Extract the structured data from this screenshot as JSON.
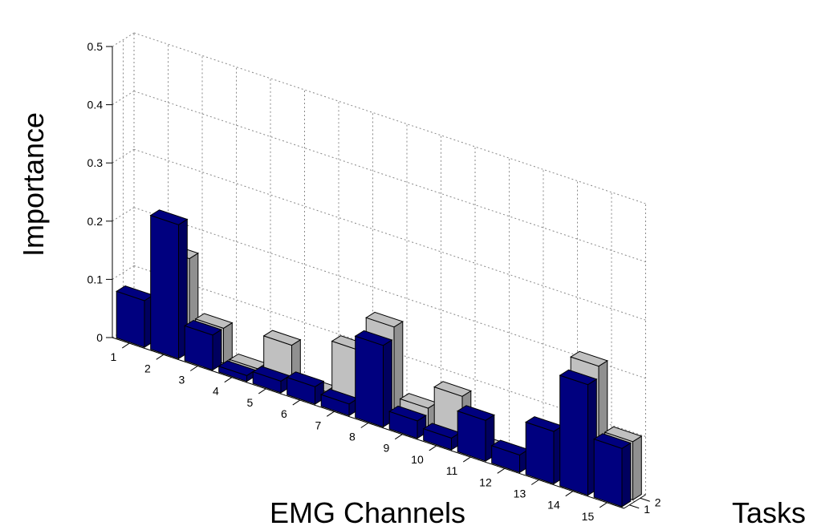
{
  "chart_data": {
    "type": "bar3d",
    "xlabel": "EMG Channels",
    "ylabel": "Importance",
    "zlabel": "Tasks",
    "categories": [
      "1",
      "2",
      "3",
      "4",
      "5",
      "6",
      "7",
      "8",
      "9",
      "10",
      "11",
      "12",
      "13",
      "14",
      "15"
    ],
    "tasks": [
      "1",
      "2"
    ],
    "yticks": [
      "0",
      "0.1",
      "0.2",
      "0.3",
      "0.4",
      "0.5"
    ],
    "ylim": [
      0,
      0.5
    ],
    "grid": true,
    "series": [
      {
        "task": "1",
        "color": "#00007f",
        "values": [
          0.08,
          0.23,
          0.06,
          0.01,
          0.02,
          0.03,
          0.02,
          0.14,
          0.03,
          0.02,
          0.07,
          0.03,
          0.09,
          0.19,
          0.1
        ]
      },
      {
        "task": "2",
        "color": "#c0c0c0",
        "values": [
          0.04,
          0.16,
          0.06,
          0.01,
          0.07,
          0.01,
          0.1,
          0.16,
          0.04,
          0.08,
          0.01,
          0.01,
          0.01,
          0.21,
          0.1
        ]
      }
    ]
  }
}
